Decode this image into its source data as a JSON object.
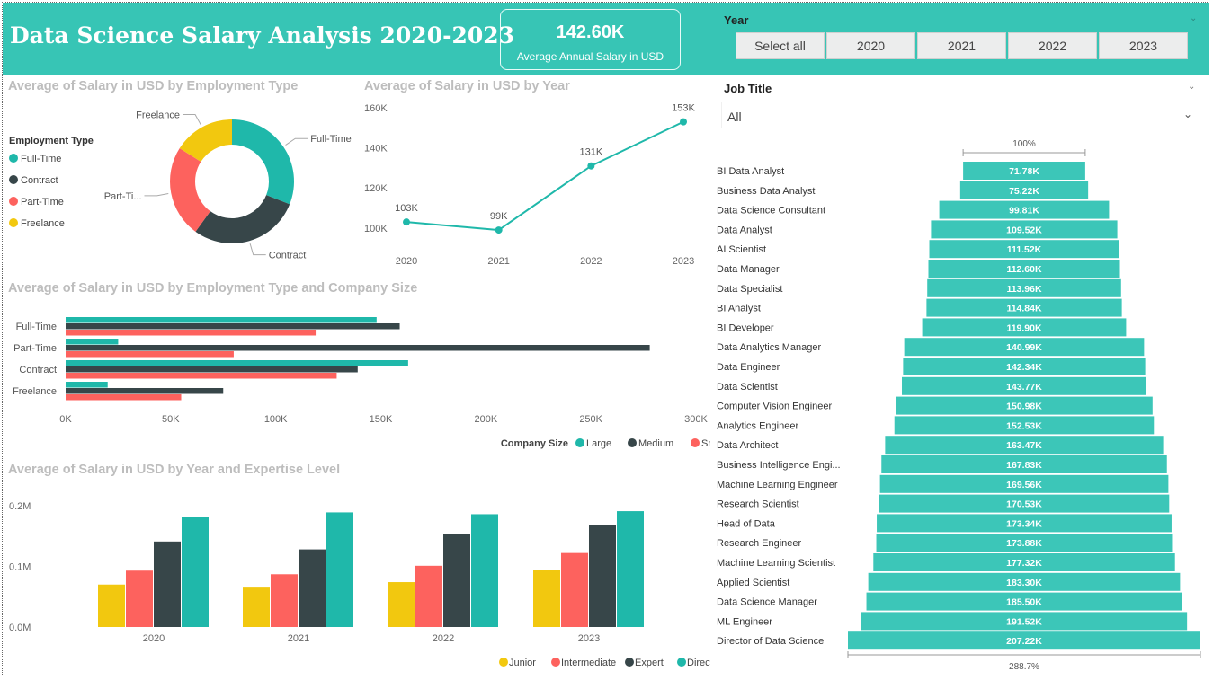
{
  "header": {
    "title": "Data Science Salary Analysis 2020-2023"
  },
  "kpi": {
    "value": "142.60K",
    "label": "Average Annual Salary in USD"
  },
  "year_slicer": {
    "title": "Year",
    "options": [
      "Select all",
      "2020",
      "2021",
      "2022",
      "2023"
    ]
  },
  "job_slicer": {
    "title": "Job Title",
    "value": "All"
  },
  "colors": {
    "teal": "#1fb8aa",
    "dark": "#374649",
    "red": "#fd625e",
    "yellow": "#f2c80f",
    "header": "#37c5b5",
    "funnel": "#3cc6b8"
  },
  "chart_data": [
    {
      "id": "donut",
      "type": "pie",
      "title": "Average of Salary in USD by Employment Type",
      "legend_title": "Employment Type",
      "legend_position": "left",
      "slices": [
        {
          "name": "Full-Time",
          "label": "Full-Time",
          "value": 31,
          "color": "#1fb8aa"
        },
        {
          "name": "Contract",
          "label": "Contract",
          "value": 29,
          "color": "#374649"
        },
        {
          "name": "Part-Time",
          "label": "Part-Ti...",
          "value": 24,
          "color": "#fd625e"
        },
        {
          "name": "Freelance",
          "label": "Freelance",
          "value": 16,
          "color": "#f2c80f"
        }
      ]
    },
    {
      "id": "line",
      "type": "line",
      "title": "Average of Salary in USD by Year",
      "categories": [
        "2020",
        "2021",
        "2022",
        "2023"
      ],
      "values": [
        103,
        99,
        131,
        153
      ],
      "data_labels": [
        "103K",
        "99K",
        "131K",
        "153K"
      ],
      "ylim": [
        95,
        160
      ],
      "yticks": [
        100,
        120,
        140,
        160
      ],
      "ytick_labels": [
        "100K",
        "120K",
        "140K",
        "160K"
      ],
      "color": "#1fb8aa"
    },
    {
      "id": "hbar",
      "type": "bar",
      "orientation": "horizontal",
      "title": "Average of Salary in USD by Employment Type and Company Size",
      "categories": [
        "Full-Time",
        "Part-Time",
        "Contract",
        "Freelance"
      ],
      "series": [
        {
          "name": "Large",
          "values": [
            148,
            25,
            163,
            20
          ],
          "color": "#1fb8aa"
        },
        {
          "name": "Medium",
          "values": [
            159,
            278,
            139,
            75
          ],
          "color": "#374649"
        },
        {
          "name": "Small",
          "values": [
            119,
            80,
            129,
            55
          ],
          "color": "#fd625e"
        }
      ],
      "xlim": [
        0,
        300
      ],
      "xticks": [
        0,
        50,
        100,
        150,
        200,
        250,
        300
      ],
      "xtick_labels": [
        "0K",
        "50K",
        "100K",
        "150K",
        "200K",
        "250K",
        "300K"
      ],
      "legend_title": "Company Size",
      "legend_position": "bottom-right"
    },
    {
      "id": "vbar",
      "type": "bar",
      "orientation": "vertical",
      "title": "Average of Salary in USD by Year and Expertise Level",
      "categories": [
        "2020",
        "2021",
        "2022",
        "2023"
      ],
      "series": [
        {
          "name": "Junior",
          "values": [
            0.07,
            0.065,
            0.074,
            0.094
          ],
          "color": "#f2c80f"
        },
        {
          "name": "Intermediate",
          "values": [
            0.093,
            0.087,
            0.101,
            0.122
          ],
          "color": "#fd625e"
        },
        {
          "name": "Expert",
          "values": [
            0.141,
            0.128,
            0.153,
            0.168
          ],
          "color": "#374649"
        },
        {
          "name": "Director",
          "values": [
            0.182,
            0.189,
            0.186,
            0.191
          ],
          "color": "#1fb8aa"
        }
      ],
      "ylim": [
        0,
        0.2
      ],
      "yticks": [
        0,
        0.1,
        0.2
      ],
      "ytick_labels": [
        "0.0M",
        "0.1M",
        "0.2M"
      ],
      "legend_position": "bottom-right"
    },
    {
      "id": "funnel",
      "type": "bar",
      "orientation": "funnel",
      "top_label": "100%",
      "bottom_label": "288.7%",
      "categories": [
        "BI Data Analyst",
        "Business Data Analyst",
        "Data Science Consultant",
        "Data Analyst",
        "AI Scientist",
        "Data Manager",
        "Data Specialist",
        "BI Analyst",
        "BI Developer",
        "Data Analytics Manager",
        "Data Engineer",
        "Data Scientist",
        "Computer Vision Engineer",
        "Analytics Engineer",
        "Data Architect",
        "Business Intelligence Engi...",
        "Machine Learning Engineer",
        "Research Scientist",
        "Head of Data",
        "Research Engineer",
        "Machine Learning Scientist",
        "Applied Scientist",
        "Data Science Manager",
        "ML Engineer",
        "Director of Data Science"
      ],
      "values": [
        71.78,
        75.22,
        99.81,
        109.52,
        111.52,
        112.6,
        113.96,
        114.84,
        119.9,
        140.99,
        142.34,
        143.77,
        150.98,
        152.53,
        163.47,
        167.83,
        169.56,
        170.53,
        173.34,
        173.88,
        177.32,
        183.3,
        185.5,
        191.52,
        207.22
      ],
      "value_labels": [
        "71.78K",
        "75.22K",
        "99.81K",
        "109.52K",
        "111.52K",
        "112.60K",
        "113.96K",
        "114.84K",
        "119.90K",
        "140.99K",
        "142.34K",
        "143.77K",
        "150.98K",
        "152.53K",
        "163.47K",
        "167.83K",
        "169.56K",
        "170.53K",
        "173.34K",
        "173.88K",
        "177.32K",
        "183.30K",
        "185.50K",
        "191.52K",
        "207.22K"
      ]
    }
  ]
}
